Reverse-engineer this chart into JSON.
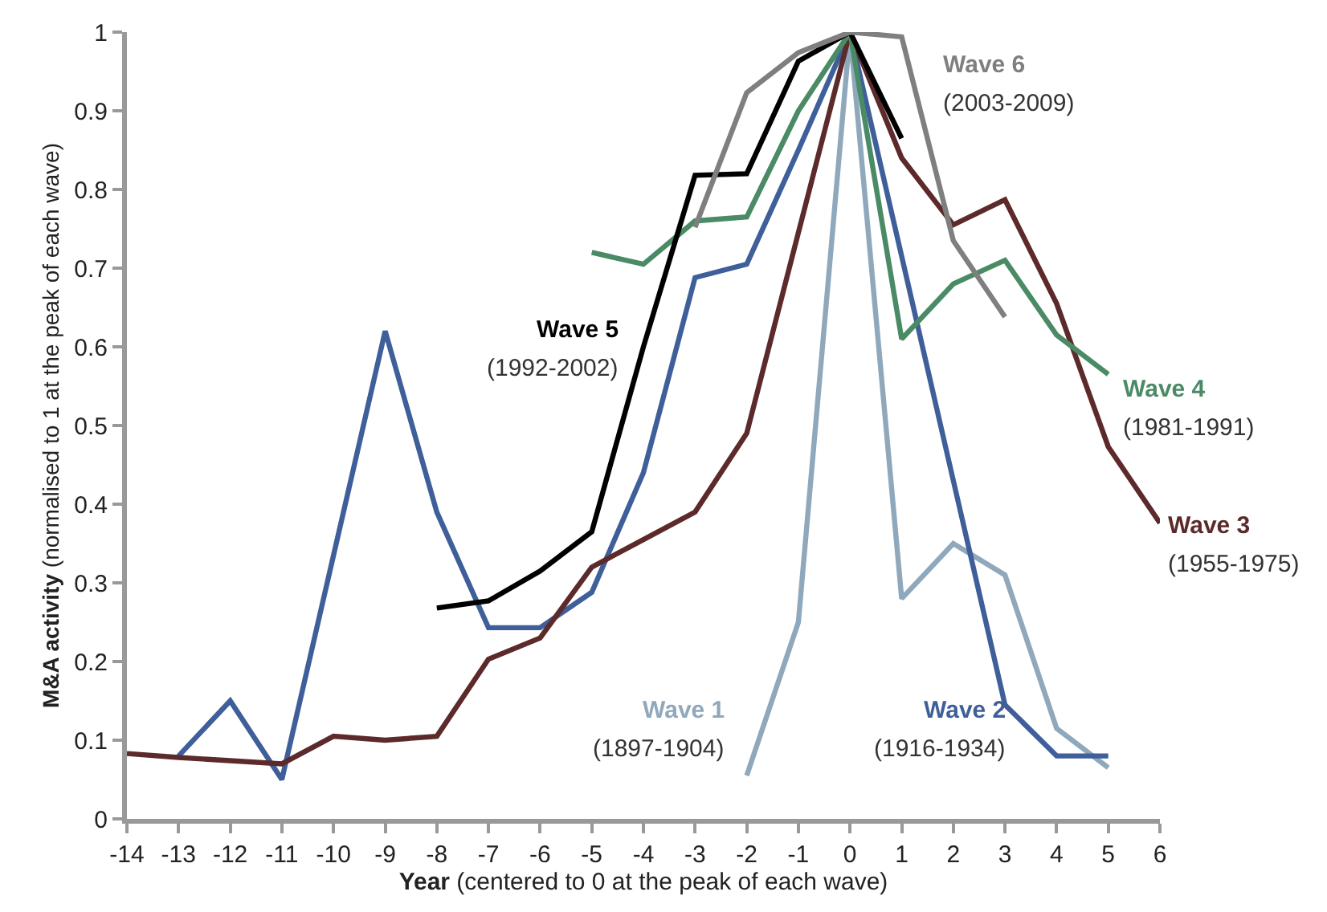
{
  "chart_data": {
    "type": "line",
    "xlabel": "Year (centered to 0 at the peak of each wave)",
    "ylabel": "M&A activity (normalised to 1 at the peak of each wave)",
    "xlim": [
      -14,
      6
    ],
    "xticks": [
      -14,
      -13,
      -12,
      -11,
      -10,
      -9,
      -8,
      -7,
      -6,
      -5,
      -4,
      -3,
      -2,
      -1,
      0,
      1,
      2,
      3,
      4,
      5,
      6
    ],
    "ylim": [
      0,
      1
    ],
    "yticks": [
      0,
      0.1,
      0.2,
      0.3,
      0.4,
      0.5,
      0.6,
      0.7,
      0.8,
      0.9,
      1
    ],
    "legend": false,
    "marker": "none",
    "line_style": "solid",
    "series": [
      {
        "name": "Wave 1",
        "color": "#8fa8bc",
        "x": [
          -2,
          -1,
          0,
          1,
          2,
          3,
          4,
          5
        ],
        "values": [
          0.055,
          0.25,
          1.0,
          0.28,
          0.35,
          0.31,
          0.115,
          0.065
        ]
      },
      {
        "name": "Wave 2",
        "color": "#3f5f9a",
        "x": [
          -13,
          -12,
          -11,
          -10,
          -9,
          -8,
          -7,
          -6,
          -5,
          -4,
          -3,
          -2,
          -1,
          0,
          1,
          2,
          3,
          4,
          5
        ],
        "values": [
          0.08,
          0.15,
          0.05,
          0.335,
          0.62,
          0.39,
          0.243,
          0.243,
          0.288,
          0.44,
          0.688,
          0.705,
          0.85,
          1.0,
          0.715,
          0.43,
          0.145,
          0.08,
          0.08
        ]
      },
      {
        "name": "Wave 3",
        "color": "#5c2a2a",
        "x": [
          -14,
          -13,
          -12,
          -11,
          -10,
          -9,
          -8,
          -7,
          -6,
          -5,
          -4,
          -3,
          -2,
          -1,
          0,
          1,
          2,
          3,
          4,
          5,
          6
        ],
        "values": [
          0.083,
          0.078,
          0.074,
          0.07,
          0.105,
          0.1,
          0.105,
          0.203,
          0.23,
          0.32,
          0.355,
          0.39,
          0.49,
          0.745,
          1.0,
          0.84,
          0.755,
          0.787,
          0.655,
          0.473,
          0.376
        ]
      },
      {
        "name": "Wave 4",
        "color": "#4a8a65",
        "x": [
          -5,
          -4,
          -3,
          -2,
          -1,
          0,
          1,
          2,
          3,
          4,
          5
        ],
        "values": [
          0.72,
          0.705,
          0.76,
          0.765,
          0.9,
          1.0,
          0.61,
          0.68,
          0.71,
          0.615,
          0.565
        ]
      },
      {
        "name": "Wave 5",
        "color": "#000000",
        "x": [
          -8,
          -7,
          -6,
          -5,
          -4,
          -3,
          -2,
          -1,
          0,
          1
        ],
        "values": [
          0.268,
          0.277,
          0.315,
          0.365,
          0.6,
          0.818,
          0.82,
          0.963,
          1.0,
          0.865
        ]
      },
      {
        "name": "Wave 6",
        "color": "#7f7f7f",
        "x": [
          -3,
          -2,
          -1,
          0,
          1,
          2,
          3
        ],
        "values": [
          0.752,
          0.923,
          0.974,
          1.0,
          0.994,
          0.735,
          0.638
        ]
      }
    ],
    "annotations": [
      "(1897-1904)",
      "(1916-1934)",
      "(1955-1975)",
      "(1981-1991)",
      "(1992-2002)",
      "(2003-2009)"
    ]
  }
}
